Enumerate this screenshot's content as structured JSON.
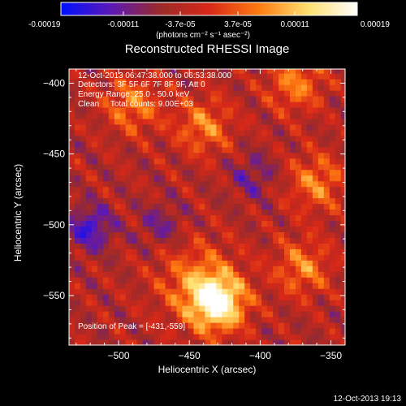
{
  "chart_data": {
    "type": "heatmap",
    "title": "Reconstructed RHESSI Image",
    "xlabel": "Heliocentric X (arcsec)",
    "ylabel": "Heliocentric Y (arcsec)",
    "xlim": [
      -535,
      -340
    ],
    "ylim": [
      -585,
      -390
    ],
    "x_ticks": [
      -500,
      -450,
      -400,
      -350
    ],
    "y_ticks": [
      -400,
      -450,
      -500,
      -550
    ],
    "colorbar": {
      "min": -0.00019,
      "max": 0.00019,
      "ticks": [
        "-0.00019",
        "-0.00011",
        "-3.7e-05",
        "3.7e-05",
        "0.00011",
        "0.00019"
      ],
      "label": "(photons cm⁻² s⁻¹ asec⁻²)",
      "colors": [
        "#0010ff",
        "#5a18b8",
        "#9a2a2a",
        "#d82818",
        "#ff7a10",
        "#ffe070",
        "#ffffff"
      ]
    },
    "annotations": {
      "time_range": "12-Oct-2013 06:47:38.000 to 06:53:38.000",
      "detectors": "Detectors: 3F 5F 6F 7F 8F 9F, Att 0",
      "energy": "Energy Range: 25.0 - 50.0 keV",
      "clean": "Clean     Total counts: 9.00E+03",
      "peak": "Position of Peak = [-431,-559]"
    },
    "peak": [
      -431,
      -559
    ],
    "features": {
      "bright_source": {
        "x": -430,
        "y": -555,
        "level": 0.00019
      },
      "arc_sources": [
        {
          "x": -490,
          "y": -415,
          "level": 0.00011
        },
        {
          "x": -440,
          "y": -430,
          "level": 0.00011
        },
        {
          "x": -375,
          "y": -400,
          "level": 0.00011
        },
        {
          "x": -360,
          "y": -470,
          "level": 0.00011
        },
        {
          "x": -370,
          "y": -530,
          "level": 0.00011
        }
      ],
      "minima": [
        {
          "x": -520,
          "y": -502,
          "level": -0.00019
        },
        {
          "x": -470,
          "y": -500,
          "level": -0.00011
        },
        {
          "x": -405,
          "y": -465,
          "level": -0.00011
        }
      ]
    }
  },
  "footer": {
    "timestamp": "12-Oct-2013 19:13"
  }
}
